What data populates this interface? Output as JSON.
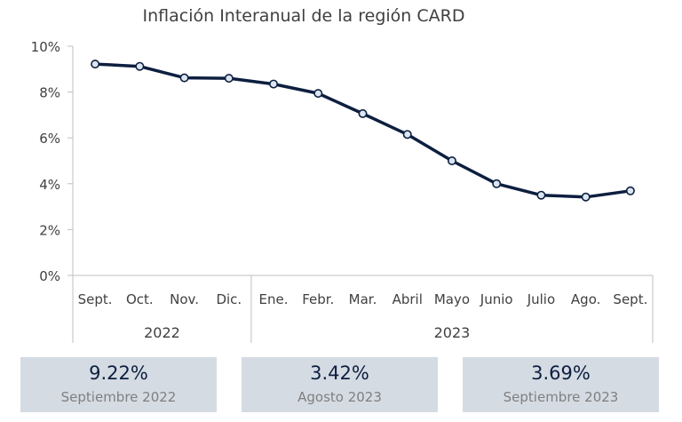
{
  "chart_data": {
    "type": "line",
    "title": "Inflación Interanual de la región CARD",
    "categories": [
      "Sept.",
      "Oct.",
      "Nov.",
      "Dic.",
      "Ene.",
      "Febr.",
      "Mar.",
      "Abril",
      "Mayo",
      "Junio",
      "Julio",
      "Ago.",
      "Sept."
    ],
    "year_groups": [
      {
        "label": "2022",
        "start": 0,
        "end": 3
      },
      {
        "label": "2023",
        "start": 4,
        "end": 12
      }
    ],
    "series": [
      {
        "values": [
          9.22,
          9.12,
          8.62,
          8.6,
          8.35,
          7.94,
          7.06,
          6.15,
          5.0,
          4.0,
          3.5,
          3.42,
          3.69
        ]
      }
    ],
    "ylim": [
      0,
      10
    ],
    "yticks": [
      0,
      2,
      4,
      6,
      8,
      10
    ],
    "ytick_labels": [
      "0%",
      "2%",
      "4%",
      "6%",
      "8%",
      "10%"
    ],
    "grid": false,
    "colors": {
      "line": "#0d1f3f",
      "marker_fill": "#dce6f2",
      "kpi_bg": "#d5dbe3"
    }
  },
  "kpis": [
    {
      "value": "9.22%",
      "label": "Septiembre 2022"
    },
    {
      "value": "3.42%",
      "label": "Agosto 2023"
    },
    {
      "value": "3.69%",
      "label": "Septiembre 2023"
    }
  ]
}
